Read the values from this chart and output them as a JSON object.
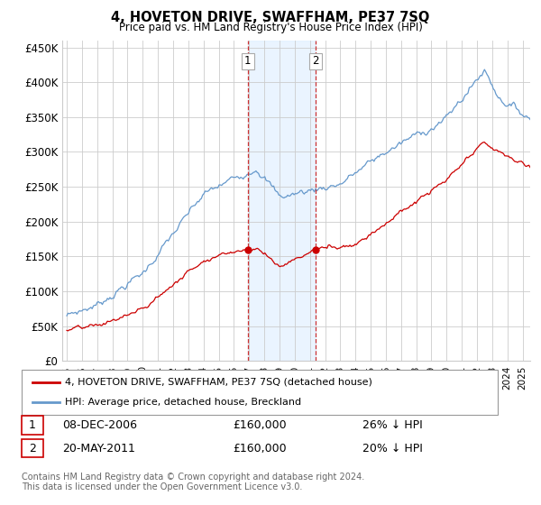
{
  "title": "4, HOVETON DRIVE, SWAFFHAM, PE37 7SQ",
  "subtitle": "Price paid vs. HM Land Registry's House Price Index (HPI)",
  "hpi_color": "#6699cc",
  "price_color": "#cc0000",
  "background_color": "#ffffff",
  "grid_color": "#cccccc",
  "ylim": [
    0,
    460000
  ],
  "yticks": [
    0,
    50000,
    100000,
    150000,
    200000,
    250000,
    300000,
    350000,
    400000,
    450000
  ],
  "ytick_labels": [
    "£0",
    "£50K",
    "£100K",
    "£150K",
    "£200K",
    "£250K",
    "£300K",
    "£350K",
    "£400K",
    "£450K"
  ],
  "sale1_date_num": 2006.92,
  "sale1_price": 160000,
  "sale1_label": "1",
  "sale1_date_str": "08-DEC-2006",
  "sale1_pct": "26% ↓ HPI",
  "sale2_date_num": 2011.38,
  "sale2_price": 160000,
  "sale2_label": "2",
  "sale2_date_str": "20-MAY-2011",
  "sale2_pct": "20% ↓ HPI",
  "legend_line1": "4, HOVETON DRIVE, SWAFFHAM, PE37 7SQ (detached house)",
  "legend_line2": "HPI: Average price, detached house, Breckland",
  "footnote": "Contains HM Land Registry data © Crown copyright and database right 2024.\nThis data is licensed under the Open Government Licence v3.0.",
  "shading_start": 2006.92,
  "shading_end": 2011.38,
  "xmin": 1995.0,
  "xmax": 2025.5
}
